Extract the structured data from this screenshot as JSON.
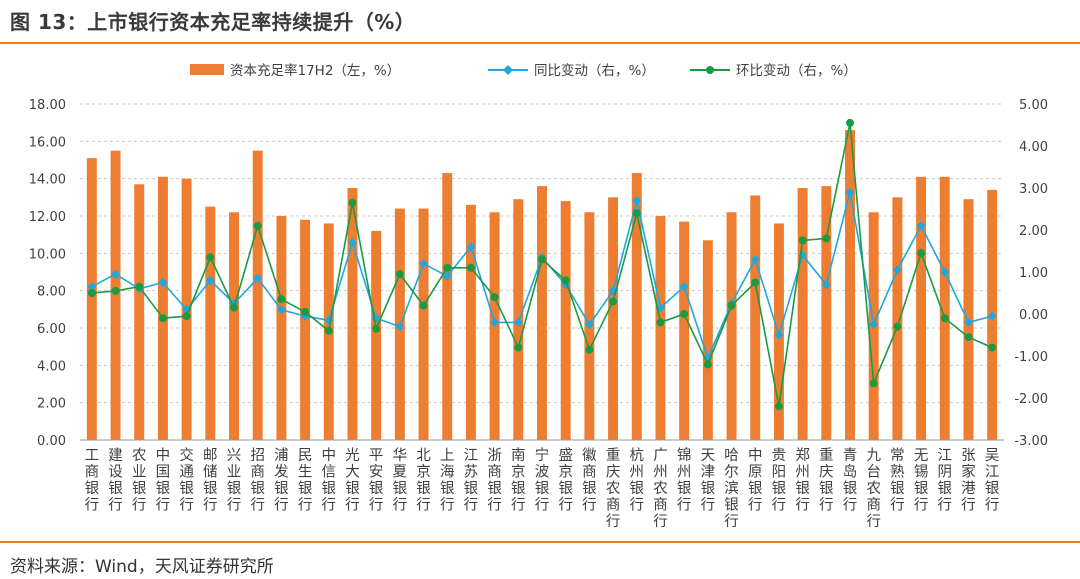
{
  "figure": {
    "title": "图 13：上市银行资本充足率持续提升（%）",
    "source": "资料来源：Wind，天风证券研究所",
    "accent_color": "#e67e22"
  },
  "chart_data": {
    "type": "bar",
    "categories": [
      "工商银行",
      "建设银行",
      "农业银行",
      "中国银行",
      "交通银行",
      "邮储银行",
      "兴业银行",
      "招商银行",
      "浦发银行",
      "民生银行",
      "中信银行",
      "光大银行",
      "平安银行",
      "华夏银行",
      "北京银行",
      "上海银行",
      "江苏银行",
      "浙商银行",
      "南京银行",
      "宁波银行",
      "盛京银行",
      "徽商银行",
      "重庆农商行",
      "杭州银行",
      "广州农商行",
      "锦州银行",
      "天津银行",
      "哈尔滨银行",
      "中原银行",
      "贵阳银行",
      "郑州银行",
      "重庆银行",
      "青岛银行",
      "九台农商行",
      "常熟银行",
      "无锡银行",
      "江阴银行",
      "张家港行",
      "吴江银行"
    ],
    "series": [
      {
        "name": "资本充足率17H2（左，%）",
        "type": "bar",
        "axis": "left",
        "color": "#ed7d31",
        "values": [
          15.1,
          15.5,
          13.7,
          14.1,
          14.0,
          12.5,
          12.2,
          15.5,
          12.0,
          11.8,
          11.6,
          13.5,
          11.2,
          12.4,
          12.4,
          14.3,
          12.6,
          12.2,
          12.9,
          13.6,
          12.8,
          12.2,
          13.0,
          14.3,
          12.0,
          11.7,
          10.7,
          12.2,
          13.1,
          11.6,
          13.5,
          13.6,
          16.6,
          12.2,
          13.0,
          14.1,
          14.1,
          12.9,
          13.4
        ]
      },
      {
        "name": "同比变动（右，%）",
        "type": "line",
        "axis": "right",
        "color": "#1ea7e1",
        "marker": "diamond",
        "values": [
          0.65,
          0.95,
          0.6,
          0.75,
          0.1,
          0.8,
          0.25,
          0.85,
          0.1,
          -0.05,
          -0.15,
          1.7,
          -0.1,
          -0.3,
          1.2,
          0.9,
          1.6,
          -0.2,
          -0.2,
          1.35,
          0.7,
          -0.25,
          0.55,
          2.7,
          0.15,
          0.65,
          -1.05,
          0.25,
          1.3,
          -0.5,
          1.4,
          0.7,
          2.9,
          -0.25,
          1.05,
          2.1,
          1.0,
          -0.2,
          -0.05
        ]
      },
      {
        "name": "环比变动（右，%）",
        "type": "line",
        "axis": "right",
        "color": "#1a9a43",
        "marker": "circle",
        "values": [
          0.5,
          0.55,
          0.65,
          -0.1,
          -0.05,
          1.35,
          0.15,
          2.1,
          0.35,
          0.05,
          -0.4,
          2.65,
          -0.35,
          0.95,
          0.2,
          1.1,
          1.1,
          0.4,
          -0.8,
          1.3,
          0.8,
          -0.85,
          0.3,
          2.4,
          -0.2,
          0.0,
          -1.2,
          0.2,
          0.75,
          -2.2,
          1.75,
          1.8,
          4.55,
          -1.65,
          -0.3,
          1.45,
          -0.1,
          -0.55,
          -0.8
        ]
      }
    ],
    "y_left": {
      "lim": [
        0,
        18
      ],
      "ticks": [
        "0.00",
        "2.00",
        "4.00",
        "6.00",
        "8.00",
        "10.00",
        "12.00",
        "14.00",
        "16.00",
        "18.00"
      ]
    },
    "y_right": {
      "lim": [
        -3,
        5
      ],
      "ticks": [
        "-3.00",
        "-2.00",
        "-1.00",
        "0.00",
        "1.00",
        "2.00",
        "3.00",
        "4.00",
        "5.00"
      ]
    },
    "grid": "horizontal dashed",
    "legend_position": "top-center"
  }
}
